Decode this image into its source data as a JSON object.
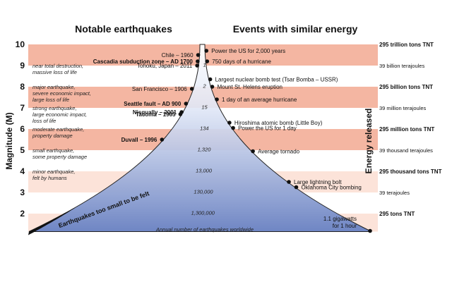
{
  "headers": {
    "left": "Notable earthquakes",
    "right": "Events with similar energy"
  },
  "axis": {
    "left": "Magnitude (M)",
    "right": "Energy released"
  },
  "colors": {
    "band_dark": "#f4b6a2",
    "band_light": "#fce3d9",
    "cone_top": "#ffffff",
    "cone_bottom": "#6f86c4",
    "dot": "#111111"
  },
  "magnitudes": [
    {
      "m": 10,
      "label": "10"
    },
    {
      "m": 9,
      "label": "9"
    },
    {
      "m": 8,
      "label": "8"
    },
    {
      "m": 7,
      "label": "7"
    },
    {
      "m": 6,
      "label": "6"
    },
    {
      "m": 5,
      "label": "5"
    },
    {
      "m": 4,
      "label": "4"
    },
    {
      "m": 3,
      "label": "3"
    },
    {
      "m": 2,
      "label": "2"
    }
  ],
  "descriptions": [
    {
      "m": 8.9,
      "lines": [
        "near total destruction,",
        "massive loss of life"
      ]
    },
    {
      "m": 7.9,
      "lines": [
        "major earthquake,",
        "severe economic impact,",
        "large loss of life"
      ]
    },
    {
      "m": 6.9,
      "lines": [
        "strong earthquake,",
        "large economic impact,",
        "loss of life"
      ]
    },
    {
      "m": 5.9,
      "lines": [
        "moderate earthquake,",
        "property damage"
      ]
    },
    {
      "m": 4.9,
      "lines": [
        "small earthquake,",
        "some property damage"
      ]
    },
    {
      "m": 3.9,
      "lines": [
        "minor earthquake,",
        "felt by humans"
      ]
    }
  ],
  "quakes": [
    {
      "label": "Chile – 1960",
      "m": 9.5,
      "bold": false
    },
    {
      "label": "Cascadia subduction zone – AD 1700",
      "m": 9.2,
      "bold": true
    },
    {
      "label": "Tohoku, Japan – 2011",
      "m": 9.0,
      "bold": false
    },
    {
      "label": "San Francisco – 1906",
      "m": 7.9,
      "bold": false
    },
    {
      "label": "Nisqually – 2001",
      "m": 6.8,
      "bold": true
    },
    {
      "label": "Seattle fault – AD 900",
      "m": 7.2,
      "bold": true
    },
    {
      "label": "Tacoma – 1965",
      "m": 6.7,
      "bold": true
    },
    {
      "label": "Duvall – 1996",
      "m": 5.5,
      "bold": true
    }
  ],
  "events": [
    {
      "label": "Power the US for 2,000 years",
      "m": 9.7
    },
    {
      "label": "750 days of a hurricane",
      "m": 9.2
    },
    {
      "label": "Largest nuclear bomb test (Tsar Bomba – USSR)",
      "m": 8.35
    },
    {
      "label": "Mount St. Helens eruption",
      "m": 8.0
    },
    {
      "label": "1 day of an average hurricane",
      "m": 7.4
    },
    {
      "label": "Hiroshima atomic bomb (Little Boy)",
      "m": 6.3
    },
    {
      "label": "Power the US for 1 day",
      "m": 6.05
    },
    {
      "label": "Average tornado",
      "m": 4.95
    },
    {
      "label": "Large lightning bolt",
      "m": 3.5
    },
    {
      "label": "Oklahoma City bombing",
      "m": 3.25
    }
  ],
  "counts": [
    {
      "label": "1",
      "m": 9.05
    },
    {
      "label": "2",
      "m": 8.05
    },
    {
      "label": "15",
      "m": 7.05
    },
    {
      "label": "134",
      "m": 6.05
    },
    {
      "label": "1,320",
      "m": 5.05
    },
    {
      "label": "13,000",
      "m": 4.05
    },
    {
      "label": "130,000",
      "m": 3.05
    },
    {
      "label": "1,300,000",
      "m": 2.05
    }
  ],
  "energies": [
    {
      "label": "295 trillion tons TNT",
      "m": 10,
      "bold": true
    },
    {
      "label": "39 billion terajoules",
      "m": 9,
      "bold": false
    },
    {
      "label": "295 billion tons TNT",
      "m": 8,
      "bold": true
    },
    {
      "label": "39 million terajoules",
      "m": 7,
      "bold": false
    },
    {
      "label": "295 million tons TNT",
      "m": 6,
      "bold": true
    },
    {
      "label": "39 thousand terajoules",
      "m": 5,
      "bold": false
    },
    {
      "label": "295 thousand tons TNT",
      "m": 4,
      "bold": true
    },
    {
      "label": "39 terajoules",
      "m": 3,
      "bold": false
    },
    {
      "label": "295 tons TNT",
      "m": 2,
      "bold": true
    }
  ],
  "gigawatts": {
    "line1": "1.1 gigawatts",
    "line2": "for 1 hour"
  },
  "too_small": "Earthquakes too small to be felt",
  "annual_caption": "Annual number of earthquakes worldwide"
}
